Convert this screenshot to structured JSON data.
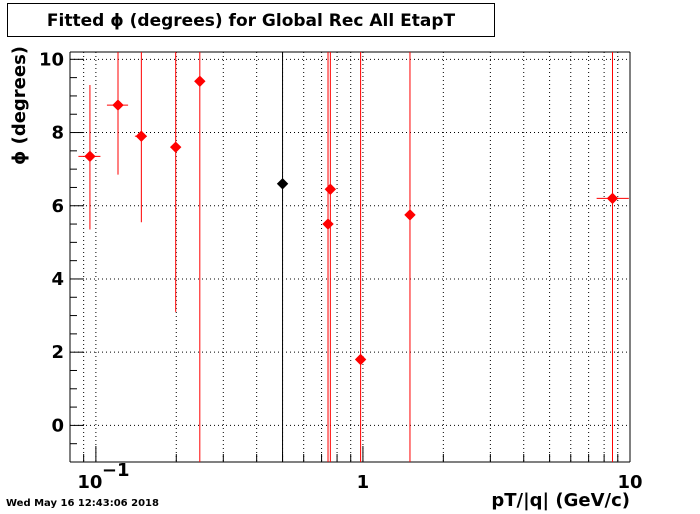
{
  "title": "Fitted ϕ (degrees) for Global Rec All EtapT",
  "timestamp": "Wed May 16 12:43:06 2018",
  "chart_data": {
    "type": "scatter",
    "title": "Fitted ϕ (degrees) for Global Rec All EtapT",
    "xlabel": "pT/|q| (GeV/c)",
    "ylabel": "ϕ (degrees)",
    "x_scale": "log",
    "xlim": [
      0.08,
      10
    ],
    "ylim": [
      -1,
      10.2
    ],
    "grid": true,
    "x_ticks": [
      {
        "value": 0.1,
        "base": "10",
        "exp": "−1"
      },
      {
        "value": 1,
        "base": "1",
        "exp": ""
      },
      {
        "value": 10,
        "base": "10",
        "exp": ""
      }
    ],
    "y_ticks": [
      0,
      2,
      4,
      6,
      8,
      10
    ],
    "series": [
      {
        "color": "#ff0000",
        "points": [
          {
            "x": 0.095,
            "y": 7.35,
            "xlo": 0.086,
            "xhi": 0.104,
            "ylo": 5.35,
            "yhi": 9.3
          },
          {
            "x": 0.121,
            "y": 8.75,
            "xlo": 0.11,
            "xhi": 0.132,
            "ylo": 6.85,
            "yhi": 10.2
          },
          {
            "x": 0.148,
            "y": 7.9,
            "xlo": 0.14,
            "xhi": 0.155,
            "ylo": 5.55,
            "yhi": 10.2
          },
          {
            "x": 0.199,
            "y": 7.6,
            "xlo": 0.199,
            "xhi": 0.199,
            "ylo": 3.1,
            "yhi": 10.2
          },
          {
            "x": 0.245,
            "y": 9.4,
            "xlo": 0.245,
            "xhi": 0.245,
            "ylo": -1,
            "yhi": 10.2
          },
          {
            "x": 0.74,
            "y": 5.5,
            "xlo": 0.74,
            "xhi": 0.74,
            "ylo": -1,
            "yhi": 10.2
          },
          {
            "x": 0.755,
            "y": 6.45,
            "xlo": 0.755,
            "xhi": 0.755,
            "ylo": -1,
            "yhi": 10.2
          },
          {
            "x": 0.98,
            "y": 1.8,
            "xlo": 0.98,
            "xhi": 0.98,
            "ylo": -1,
            "yhi": 10.2
          },
          {
            "x": 1.5,
            "y": 5.75,
            "xlo": 1.5,
            "xhi": 1.5,
            "ylo": -1,
            "yhi": 10.2
          },
          {
            "x": 8.6,
            "y": 6.2,
            "xlo": 7.5,
            "xhi": 9.9,
            "ylo": -1,
            "yhi": 10.2
          }
        ]
      },
      {
        "color": "#000000",
        "points": [
          {
            "x": 0.5,
            "y": 6.6,
            "xlo": 0.5,
            "xhi": 0.5,
            "ylo": -1,
            "yhi": 10.2
          }
        ]
      }
    ]
  }
}
